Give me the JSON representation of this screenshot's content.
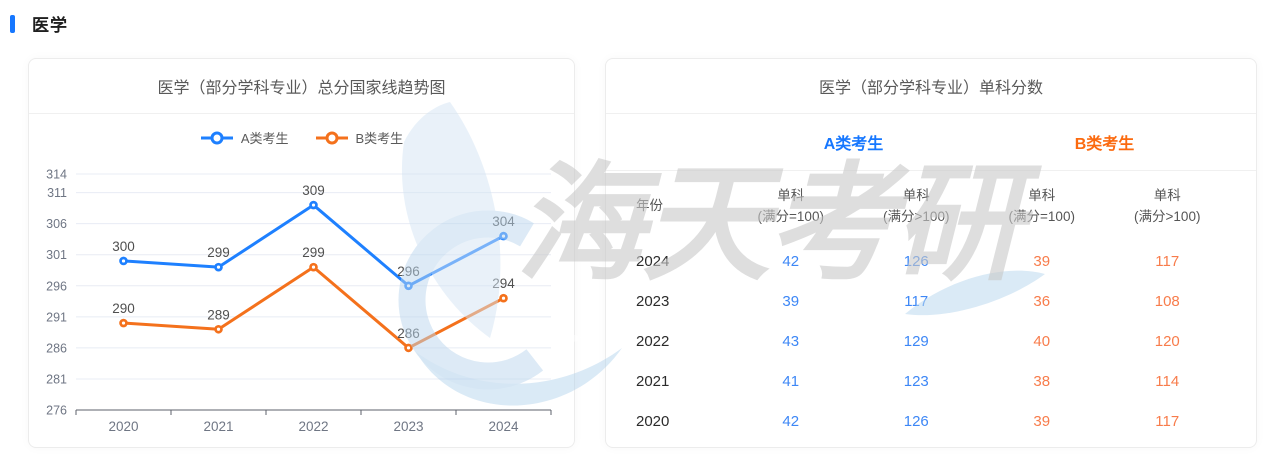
{
  "page": {
    "section_title": "医学",
    "accent_color": "#1677ff"
  },
  "watermark": {
    "text": "海天考研"
  },
  "trend_card": {
    "title": "医学（部分学科专业）总分国家线趋势图",
    "legend": [
      {
        "label": "A类考生",
        "color": "#1e80ff"
      },
      {
        "label": "B类考生",
        "color": "#f4711c"
      }
    ]
  },
  "chart_data": {
    "type": "line",
    "title": "医学（部分学科专业）总分国家线趋势图",
    "x": [
      "2020",
      "2021",
      "2022",
      "2023",
      "2024"
    ],
    "series": [
      {
        "name": "A类考生",
        "color": "#1e80ff",
        "values": [
          300,
          299,
          309,
          296,
          304
        ]
      },
      {
        "name": "B类考生",
        "color": "#f4711c",
        "values": [
          290,
          289,
          299,
          286,
          294
        ]
      }
    ],
    "yticks": [
      276,
      281,
      286,
      291,
      296,
      301,
      306,
      311,
      314
    ],
    "ylim": [
      276,
      314
    ],
    "grid": true,
    "legend_position": "top",
    "xlabel": "",
    "ylabel": ""
  },
  "score_card": {
    "title": "医学（部分学科专业）单科分数",
    "group_a": {
      "label": "A类考生",
      "color": "#1677ff"
    },
    "group_b": {
      "label": "B类考生",
      "color": "#fb6a0f"
    },
    "year_header": "年份",
    "sub_columns": [
      {
        "line1": "单科",
        "line2": "(满分=100)"
      },
      {
        "line1": "单科",
        "line2": "(满分>100)"
      },
      {
        "line1": "单科",
        "line2": "(满分=100)"
      },
      {
        "line1": "单科",
        "line2": "(满分>100)"
      }
    ],
    "value_colors": {
      "a": "#3d87f6",
      "b": "#f87c4b"
    },
    "rows": [
      {
        "year": "2024",
        "values": [
          "42",
          "126",
          "39",
          "117"
        ]
      },
      {
        "year": "2023",
        "values": [
          "39",
          "117",
          "36",
          "108"
        ]
      },
      {
        "year": "2022",
        "values": [
          "43",
          "129",
          "40",
          "120"
        ]
      },
      {
        "year": "2021",
        "values": [
          "41",
          "123",
          "38",
          "114"
        ]
      },
      {
        "year": "2020",
        "values": [
          "42",
          "126",
          "39",
          "117"
        ]
      }
    ]
  }
}
